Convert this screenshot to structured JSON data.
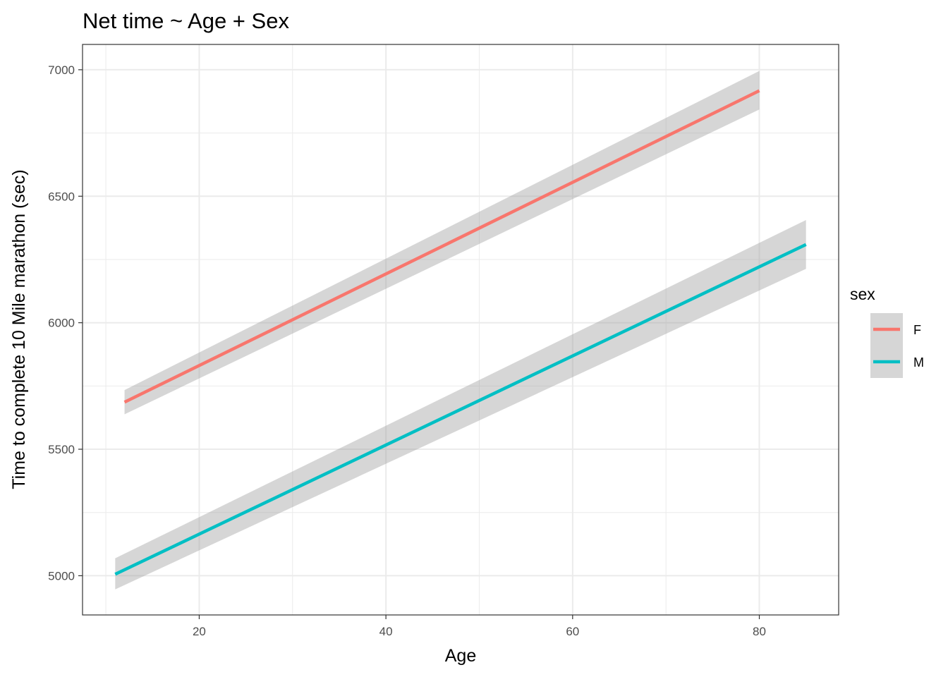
{
  "chart_data": {
    "type": "line",
    "title": "Net time ~ Age + Sex",
    "xlabel": "Age",
    "ylabel": "Time to complete 10 Mile marathon (sec)",
    "xlim": [
      7.5,
      88.5
    ],
    "ylim": [
      4845,
      7100
    ],
    "x_ticks": [
      20,
      40,
      60,
      80
    ],
    "x_minor_ticks": [
      10,
      30,
      50,
      70
    ],
    "y_ticks": [
      5000,
      5500,
      6000,
      6500,
      7000
    ],
    "y_minor_ticks": [
      5250,
      5750,
      6250,
      6750
    ],
    "grid": true,
    "legend": {
      "title": "sex",
      "placement": "right"
    },
    "series": [
      {
        "name": "F",
        "color": "#F8766D",
        "x": [
          12,
          80
        ],
        "y": [
          5686,
          6917
        ],
        "ci_lower": [
          5638,
          6843
        ],
        "ci_upper": [
          5734,
          6995
        ]
      },
      {
        "name": "M",
        "color": "#00BFC4",
        "x": [
          11,
          85
        ],
        "y": [
          5006,
          6309
        ],
        "ci_lower": [
          4946,
          6213
        ],
        "ci_upper": [
          5069,
          6406
        ]
      }
    ],
    "ribbon_color": "#999999"
  }
}
